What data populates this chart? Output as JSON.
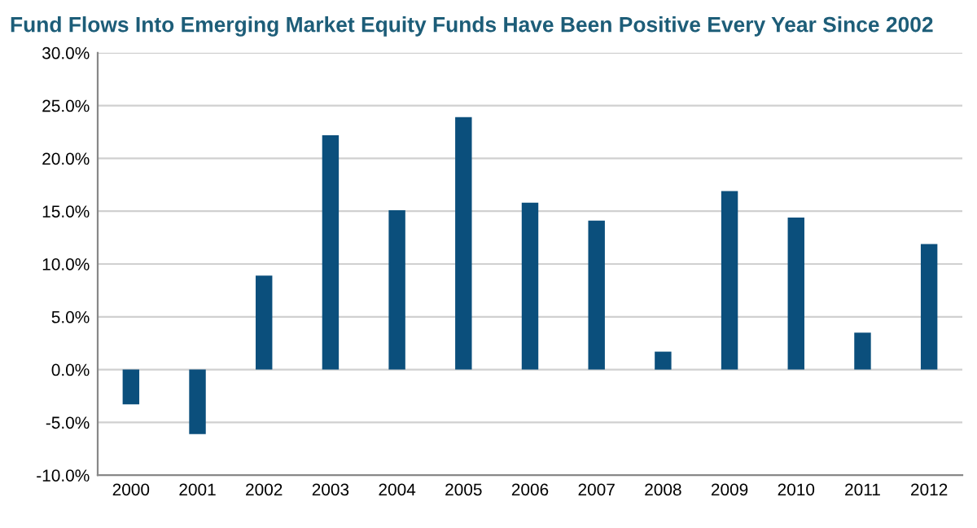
{
  "chart_data": {
    "type": "bar",
    "title": "Fund Flows Into Emerging Market Equity Funds Have Been Positive Every Year Since 2002",
    "categories": [
      "2000",
      "2001",
      "2002",
      "2003",
      "2004",
      "2005",
      "2006",
      "2007",
      "2008",
      "2009",
      "2010",
      "2011",
      "2012"
    ],
    "values": [
      -3.3,
      -6.1,
      8.9,
      22.2,
      15.1,
      23.9,
      15.8,
      14.1,
      1.7,
      16.9,
      14.4,
      3.5,
      11.9
    ],
    "color": "#0b4f7c",
    "ylim": [
      -10,
      30
    ],
    "yticks": [
      {
        "value": -10,
        "label": "-10.0%"
      },
      {
        "value": -5,
        "label": "-5.0%"
      },
      {
        "value": 0,
        "label": "0.0%"
      },
      {
        "value": 5,
        "label": "5.0%"
      },
      {
        "value": 10,
        "label": "10.0%"
      },
      {
        "value": 15,
        "label": "15.0%"
      },
      {
        "value": 20,
        "label": "20.0%"
      },
      {
        "value": 25,
        "label": "25.0%"
      },
      {
        "value": 30,
        "label": "30.0%"
      }
    ],
    "grid": "y"
  }
}
